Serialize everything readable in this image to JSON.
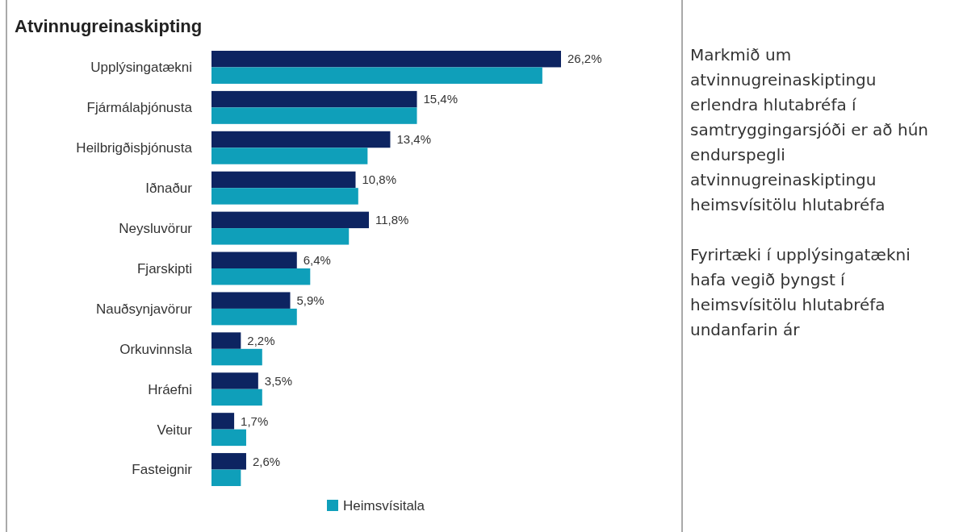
{
  "chart_data": {
    "type": "bar",
    "orientation": "horizontal",
    "title": "Atvinnugreinaskipting",
    "categories": [
      "Upplýsingatækni",
      "Fjármálaþjónusta",
      "Heilbrigðisþjónusta",
      "Iðnaður",
      "Neysluvörur",
      "Fjarskipti",
      "Nauðsynjavörur",
      "Orkuvinnsla",
      "Hráefni",
      "Veitur",
      "Fasteignir"
    ],
    "series": [
      {
        "color": "#0d2461",
        "values": [
          26.2,
          15.4,
          13.4,
          10.8,
          11.8,
          6.4,
          5.9,
          2.2,
          3.5,
          1.7,
          2.6
        ],
        "value_labels": [
          "26,2%",
          "15,4%",
          "13,4%",
          "10,8%",
          "11,8%",
          "6,4%",
          "5,9%",
          "2,2%",
          "3,5%",
          "1,7%",
          "2,6%"
        ]
      },
      {
        "name": "Heimsvísitala",
        "color": "#0f9fba",
        "values": [
          24.8,
          15.4,
          11.7,
          11.0,
          10.3,
          7.4,
          6.4,
          3.8,
          3.8,
          2.6,
          2.2
        ]
      }
    ],
    "legend": "bottom",
    "annotations": [
      "Markmið um atvinnugreinaskiptingu erlendra hlutabréfa í samtryggingarsjóði er að hún endurspegli atvinnugreinaskiptingu heimsvísitölu hlutabréfa",
      "Fyrirtæki í upplýsingatækni hafa vegið þyngst í heimsvísitölu hlutabréfa undanfarin ár"
    ]
  }
}
